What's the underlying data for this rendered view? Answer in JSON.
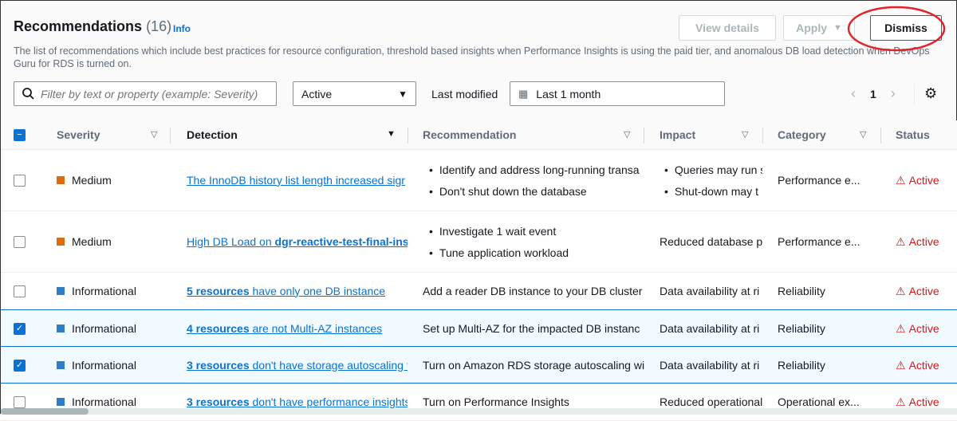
{
  "header": {
    "title": "Recommendations",
    "count": "(16)",
    "info": "Info",
    "description": "The list of recommendations which include best practices for resource configuration, threshold based insights when Performance Insights is using the paid tier, and anomalous DB load detection when DevOps Guru for RDS is turned on."
  },
  "actions": {
    "view_details": "View details",
    "apply": "Apply",
    "dismiss": "Dismiss"
  },
  "filters": {
    "search_placeholder": "Filter by text or property (example: Severity)",
    "status_value": "Active",
    "last_modified_label": "Last modified",
    "date_range": "Last 1 month"
  },
  "pagination": {
    "page": "1"
  },
  "table": {
    "columns": [
      "Severity",
      "Detection",
      "Recommendation",
      "Impact",
      "Category",
      "Status"
    ],
    "sorted_column": "Detection",
    "rows": [
      {
        "selected": false,
        "severity": "Medium",
        "severity_color": "#dd6b10",
        "detection": [
          {
            "t": "The InnoDB history list length increased sigr",
            "b": false
          }
        ],
        "recommendation": [
          "Identify and address long-running transa",
          "Don't shut down the database"
        ],
        "impact": [
          "Queries may run s",
          "Shut-down may t"
        ],
        "category": "Performance e...",
        "status": "Active"
      },
      {
        "selected": false,
        "severity": "Medium",
        "severity_color": "#dd6b10",
        "detection": [
          {
            "t": "High DB Load on ",
            "b": false
          },
          {
            "t": "dgr-reactive-test-final-ins",
            "b": true
          }
        ],
        "recommendation": [
          "Investigate 1 wait event",
          "Tune application workload"
        ],
        "impact": "Reduced database pe",
        "category": "Performance e...",
        "status": "Active"
      },
      {
        "selected": false,
        "severity": "Informational",
        "severity_color": "#2e7dc6",
        "detection": [
          {
            "t": "5 resources",
            "b": true
          },
          {
            "t": " have only one DB instance",
            "b": false
          }
        ],
        "recommendation": "Add a reader DB instance to your DB cluster",
        "impact": "Data availability at ri",
        "category": "Reliability",
        "status": "Active"
      },
      {
        "selected": true,
        "severity": "Informational",
        "severity_color": "#2e7dc6",
        "detection": [
          {
            "t": "4 resources",
            "b": true
          },
          {
            "t": " are not Multi-AZ instances",
            "b": false
          }
        ],
        "recommendation": "Set up Multi-AZ for the impacted DB instanc",
        "impact": "Data availability at ri",
        "category": "Reliability",
        "status": "Active"
      },
      {
        "selected": true,
        "severity": "Informational",
        "severity_color": "#2e7dc6",
        "detection": [
          {
            "t": "3 resources",
            "b": true
          },
          {
            "t": " don't have storage autoscaling t",
            "b": false
          }
        ],
        "recommendation": "Turn on Amazon RDS storage autoscaling wi",
        "impact": "Data availability at ri",
        "category": "Reliability",
        "status": "Active"
      },
      {
        "selected": false,
        "severity": "Informational",
        "severity_color": "#2e7dc6",
        "detection": [
          {
            "t": "3 resources",
            "b": true
          },
          {
            "t": " don't have performance insights",
            "b": false
          }
        ],
        "recommendation": "Turn on Performance Insights",
        "impact": "Reduced operational",
        "category": "Operational ex...",
        "status": "Active"
      }
    ]
  },
  "colors": {
    "accent": "#0972d3",
    "status_active": "#d91515",
    "annotation": "#e0262b"
  }
}
